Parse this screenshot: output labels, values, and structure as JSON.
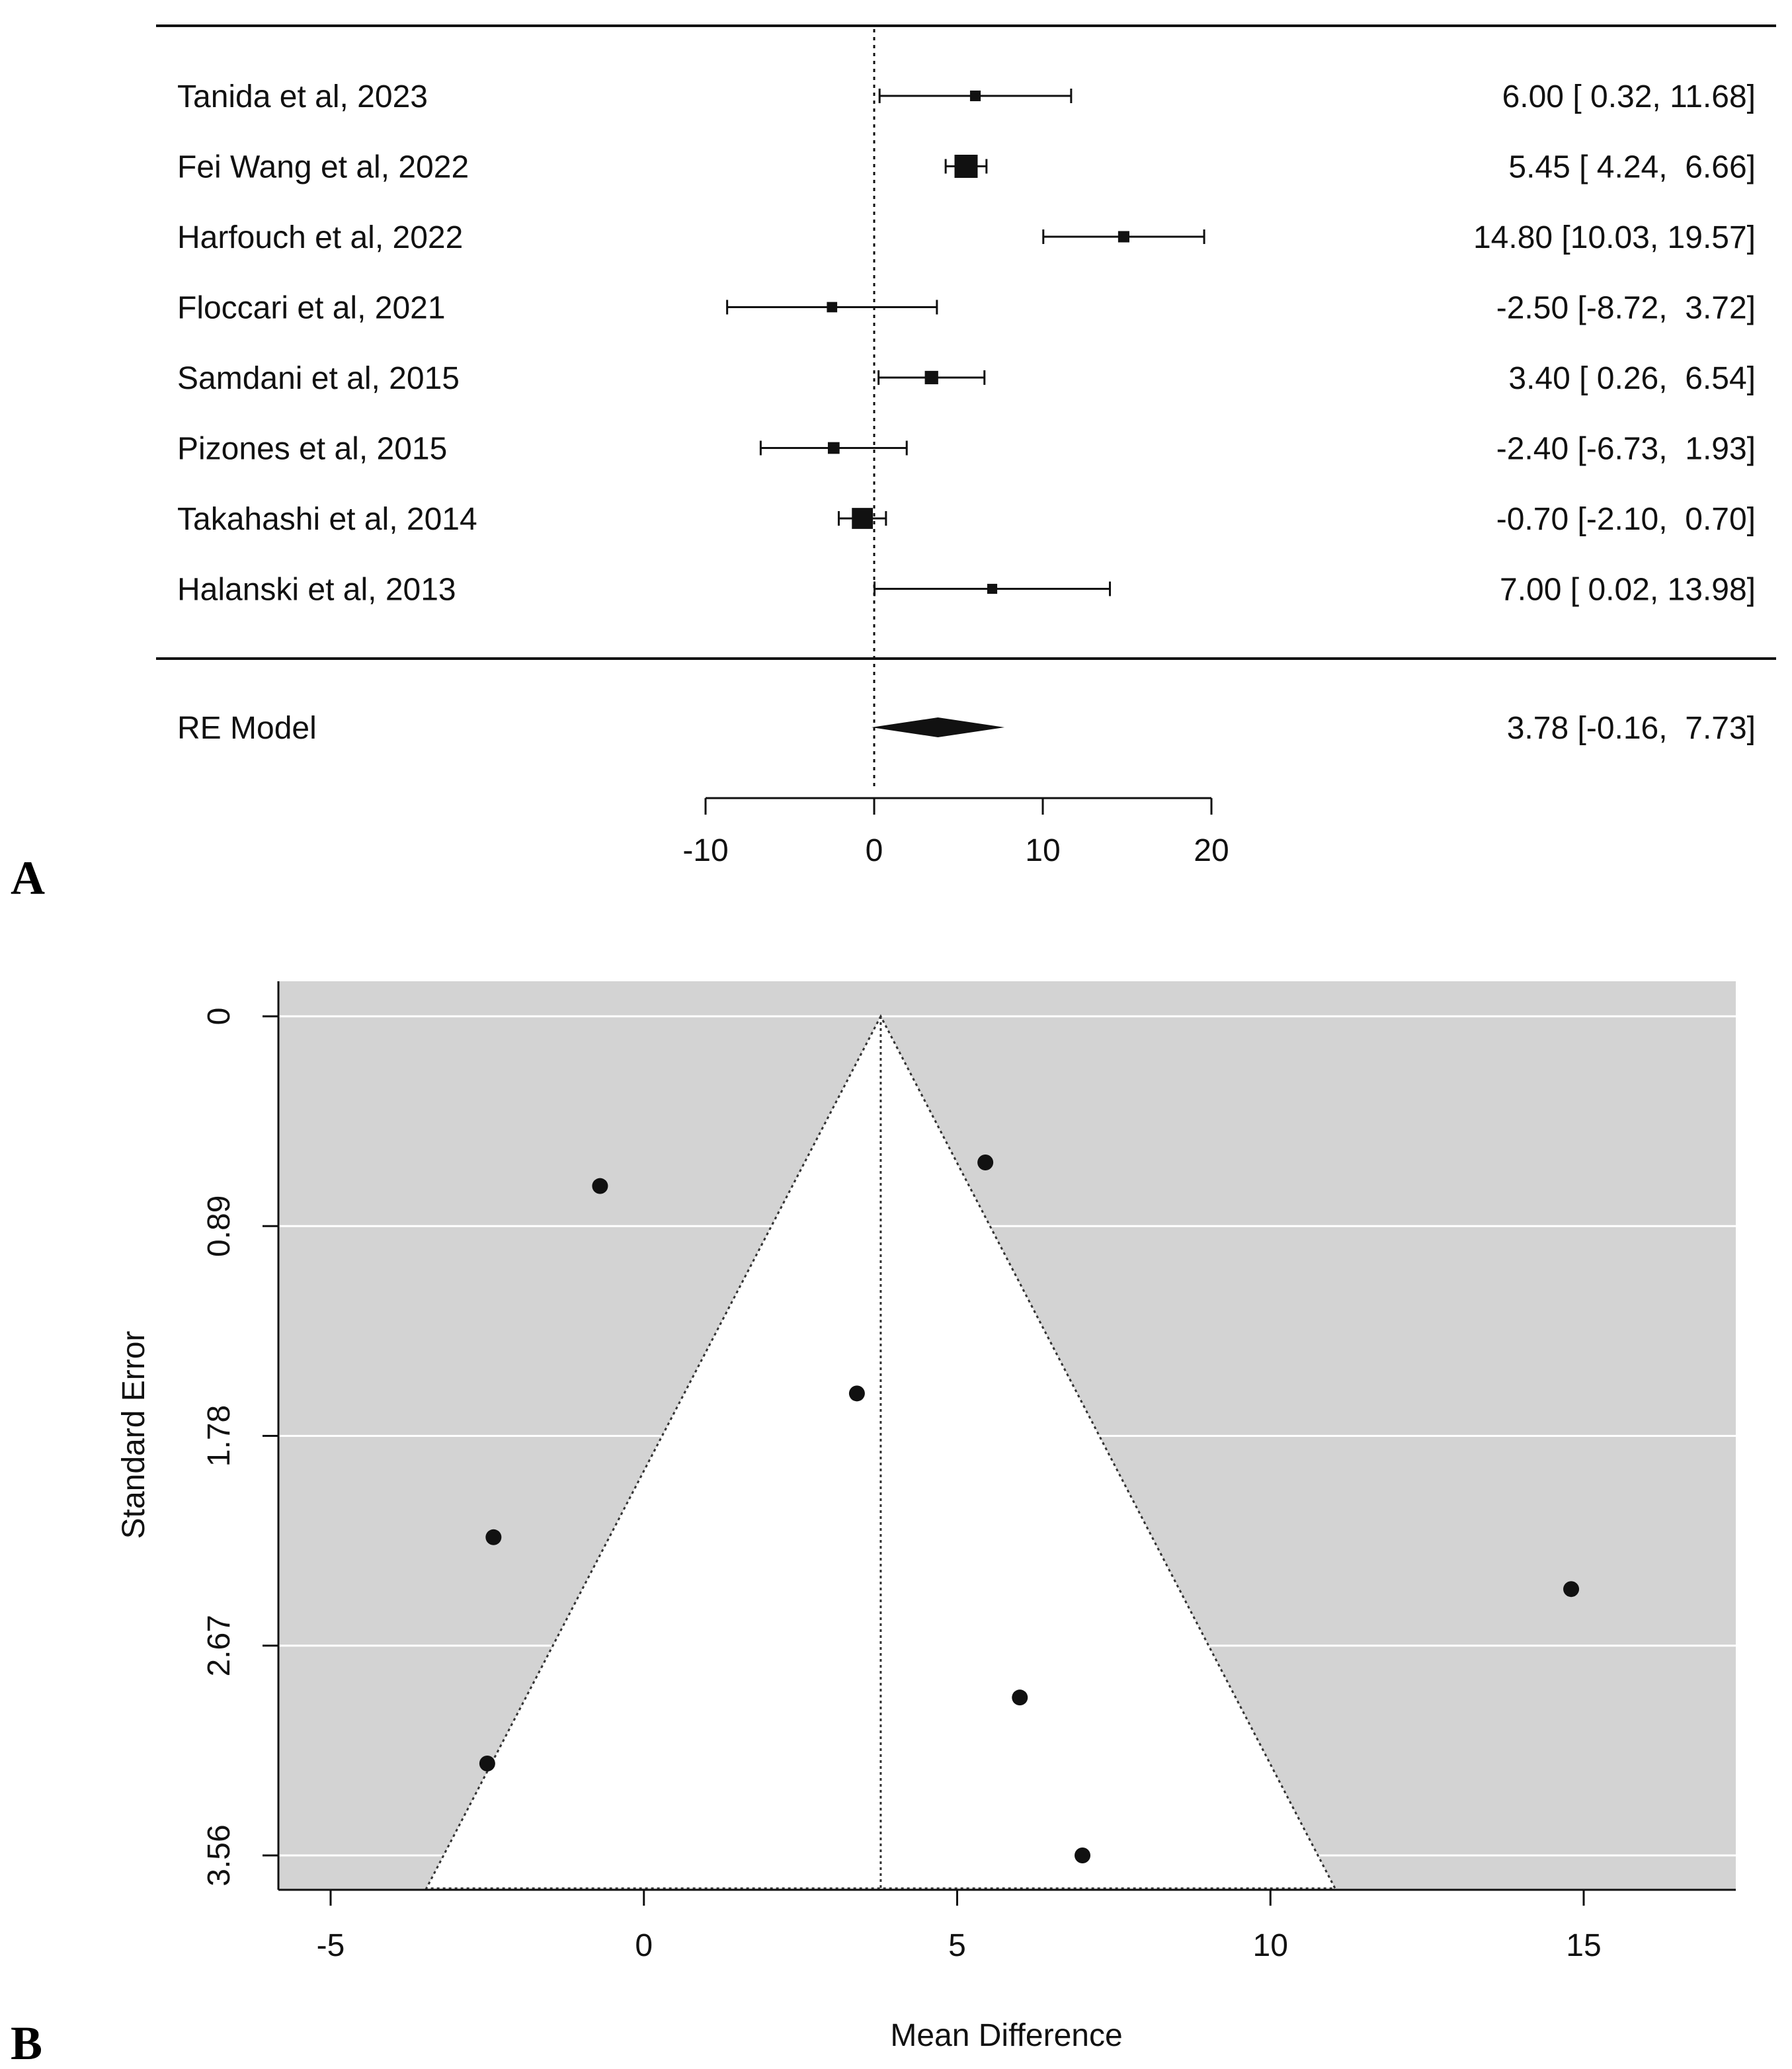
{
  "colors": {
    "ink": "#111111",
    "funnel_region": "#d3d3d3",
    "funnel_inner": "#ffffff",
    "grid": "#ffffff"
  },
  "panel_a": {
    "panel_label": "A",
    "chart_data": {
      "type": "forest",
      "studies": [
        {
          "label": "Tanida et al, 2023",
          "estimate": 6.0,
          "ci_low": 0.32,
          "ci_high": 11.68,
          "display": "6.00 [ 0.32, 11.68]"
        },
        {
          "label": "Fei Wang et al, 2022",
          "estimate": 5.45,
          "ci_low": 4.24,
          "ci_high": 6.66,
          "display": "5.45 [ 4.24,  6.66]"
        },
        {
          "label": "Harfouch et al, 2022",
          "estimate": 14.8,
          "ci_low": 10.03,
          "ci_high": 19.57,
          "display": "14.80 [10.03, 19.57]"
        },
        {
          "label": "Floccari et al, 2021",
          "estimate": -2.5,
          "ci_low": -8.72,
          "ci_high": 3.72,
          "display": "-2.50 [-8.72,  3.72]"
        },
        {
          "label": "Samdani et al, 2015",
          "estimate": 3.4,
          "ci_low": 0.26,
          "ci_high": 6.54,
          "display": "3.40 [ 0.26,  6.54]"
        },
        {
          "label": "Pizones et al, 2015",
          "estimate": -2.4,
          "ci_low": -6.73,
          "ci_high": 1.93,
          "display": "-2.40 [-6.73,  1.93]"
        },
        {
          "label": "Takahashi et al, 2014",
          "estimate": -0.7,
          "ci_low": -2.1,
          "ci_high": 0.7,
          "display": "-0.70 [-2.10,  0.70]"
        },
        {
          "label": "Halanski et al, 2013",
          "estimate": 7.0,
          "ci_low": 0.02,
          "ci_high": 13.98,
          "display": "7.00 [ 0.02, 13.98]"
        }
      ],
      "summary": {
        "label": "RE Model",
        "estimate": 3.78,
        "ci_low": -0.16,
        "ci_high": 7.73,
        "display": "3.78 [-0.16,  7.73]"
      },
      "x_ticks": [
        "-10",
        "0",
        "10",
        "20"
      ],
      "x_range": [
        -10,
        20
      ],
      "reference_line": 0
    }
  },
  "panel_b": {
    "panel_label": "B",
    "chart_data": {
      "type": "scatter",
      "subtype": "funnel",
      "xlabel": "Mean Difference",
      "ylabel": "Standard Error",
      "x_ticks": [
        "-5",
        "0",
        "5",
        "10",
        "15"
      ],
      "y_ticks": [
        "0",
        "0.89",
        "1.78",
        "2.67",
        "3.56"
      ],
      "xlim": [
        -6.0,
        17.3
      ],
      "ylim": [
        0,
        3.7
      ],
      "center": 3.78,
      "points": [
        {
          "x": 6.0,
          "y": 2.89
        },
        {
          "x": 5.45,
          "y": 0.62
        },
        {
          "x": 14.8,
          "y": 2.43
        },
        {
          "x": -2.5,
          "y": 3.17
        },
        {
          "x": 3.4,
          "y": 1.6
        },
        {
          "x": -2.4,
          "y": 2.21
        },
        {
          "x": -0.7,
          "y": 0.72
        },
        {
          "x": 7.0,
          "y": 3.56
        }
      ]
    }
  }
}
